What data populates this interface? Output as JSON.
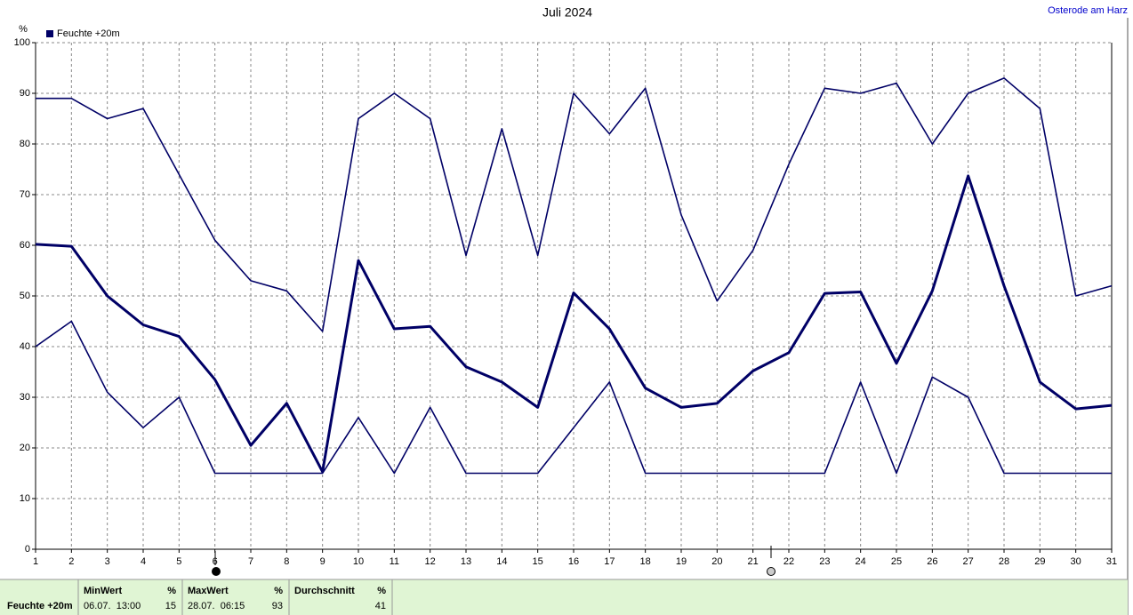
{
  "chart_data": {
    "type": "line",
    "title": "Juli 2024",
    "station": "Osterode am Harz",
    "ylabel": "%",
    "x": [
      1,
      2,
      3,
      4,
      5,
      6,
      7,
      8,
      9,
      10,
      11,
      12,
      13,
      14,
      15,
      16,
      17,
      18,
      19,
      20,
      21,
      22,
      23,
      24,
      25,
      26,
      27,
      28,
      29,
      30,
      31
    ],
    "xlim": [
      1,
      31
    ],
    "xticks": [
      1,
      2,
      3,
      4,
      5,
      6,
      7,
      8,
      9,
      10,
      11,
      12,
      13,
      14,
      15,
      16,
      17,
      18,
      19,
      20,
      21,
      22,
      23,
      24,
      25,
      26,
      27,
      28,
      29,
      30,
      31
    ],
    "ylim": [
      0,
      100
    ],
    "yticks": [
      0,
      10,
      20,
      30,
      40,
      50,
      60,
      70,
      80,
      90,
      100
    ],
    "grid": true,
    "legend": "top-left",
    "series": [
      {
        "color": "#000066",
        "values": [
          89,
          89,
          85,
          87,
          74,
          61,
          53,
          51,
          43,
          85,
          90,
          85,
          58,
          83,
          58,
          90,
          82,
          91,
          66,
          49,
          59,
          76,
          91,
          90,
          92,
          80,
          90,
          93,
          87,
          50,
          52
        ]
      },
      {
        "name": "Feuchte +20m",
        "color": "#000066",
        "values": [
          60.2,
          59.8,
          50,
          44.3,
          42,
          33.5,
          20.5,
          28.8,
          15.3,
          57,
          43.5,
          44,
          36,
          33,
          28,
          50.6,
          43.5,
          31.8,
          28,
          28.8,
          35.2,
          38.8,
          50.5,
          50.8,
          36.7,
          51,
          73.7,
          52,
          33,
          27.7,
          28.4
        ]
      },
      {
        "color": "#000066",
        "values": [
          40,
          45,
          31,
          24,
          30,
          15,
          15,
          15,
          15,
          26,
          15,
          28,
          15,
          15,
          15,
          24,
          33,
          15,
          15,
          15,
          15,
          15,
          15,
          33,
          15,
          34,
          30,
          15,
          15,
          15,
          15
        ]
      }
    ]
  },
  "footer": {
    "row_label": "Feuchte +20m",
    "columns": [
      {
        "header": "MinWert",
        "unit": "%",
        "time": "06.07.  13:00",
        "value": 15
      },
      {
        "header": "MaxWert",
        "unit": "%",
        "time": "28.07.  06:15",
        "value": 93
      },
      {
        "header": "Durchschnitt",
        "unit": "%",
        "value": 41
      }
    ]
  }
}
